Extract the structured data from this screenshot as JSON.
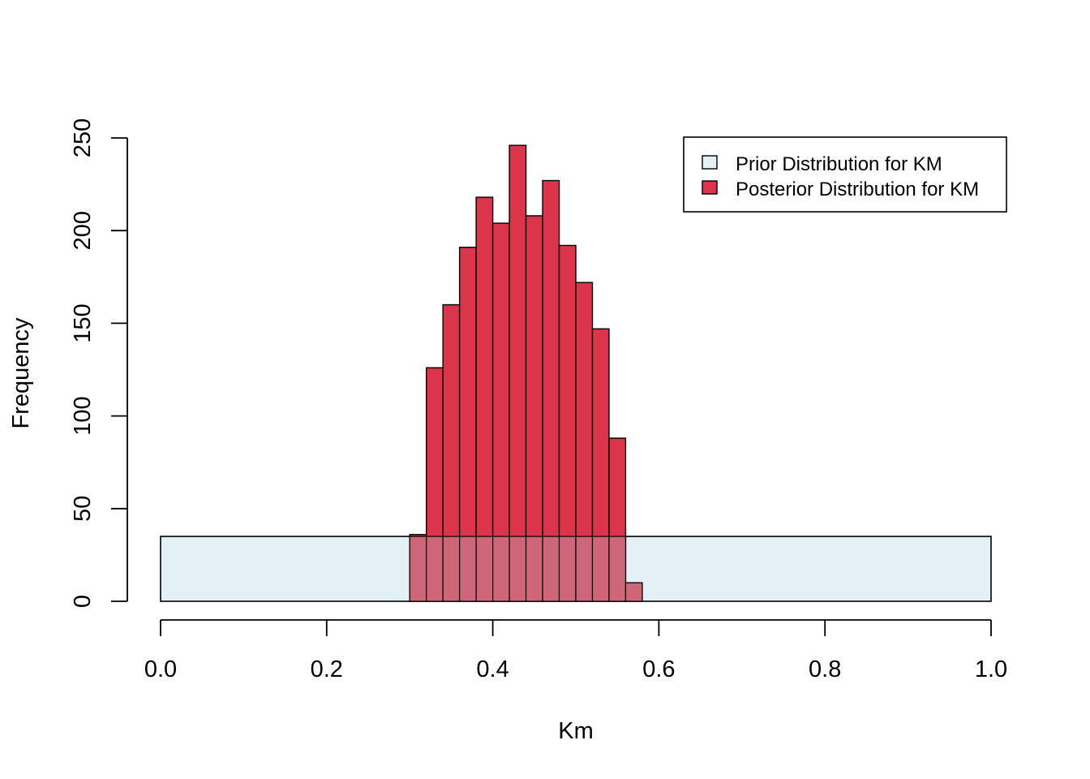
{
  "chart_data": {
    "type": "bar",
    "xlabel": "Km",
    "ylabel": "Frequency",
    "xlim": [
      0,
      1
    ],
    "ylim": [
      0,
      250
    ],
    "x_ticks": [
      "0.0",
      "0.2",
      "0.4",
      "0.6",
      "0.8",
      "1.0"
    ],
    "y_ticks": [
      "0",
      "50",
      "100",
      "150",
      "200",
      "250"
    ],
    "grid": false,
    "legend_position": "top-right",
    "series": [
      {
        "name": "Prior Distribution for KM",
        "color": "#e3f1f6",
        "bins": [
          {
            "x0": 0.0,
            "x1": 1.0,
            "value": 35
          }
        ]
      },
      {
        "name": "Posterior Distribution for KM",
        "color": "#dc344a",
        "bins": [
          {
            "x0": 0.3,
            "x1": 0.32,
            "value": 36
          },
          {
            "x0": 0.32,
            "x1": 0.34,
            "value": 126
          },
          {
            "x0": 0.34,
            "x1": 0.36,
            "value": 160
          },
          {
            "x0": 0.36,
            "x1": 0.38,
            "value": 191
          },
          {
            "x0": 0.38,
            "x1": 0.4,
            "value": 218
          },
          {
            "x0": 0.4,
            "x1": 0.42,
            "value": 204
          },
          {
            "x0": 0.42,
            "x1": 0.44,
            "value": 246
          },
          {
            "x0": 0.44,
            "x1": 0.46,
            "value": 208
          },
          {
            "x0": 0.46,
            "x1": 0.48,
            "value": 227
          },
          {
            "x0": 0.48,
            "x1": 0.5,
            "value": 192
          },
          {
            "x0": 0.5,
            "x1": 0.52,
            "value": 172
          },
          {
            "x0": 0.52,
            "x1": 0.54,
            "value": 147
          },
          {
            "x0": 0.54,
            "x1": 0.56,
            "value": 88
          },
          {
            "x0": 0.56,
            "x1": 0.58,
            "value": 10
          }
        ]
      }
    ],
    "overlap_color": "#cc6678"
  }
}
